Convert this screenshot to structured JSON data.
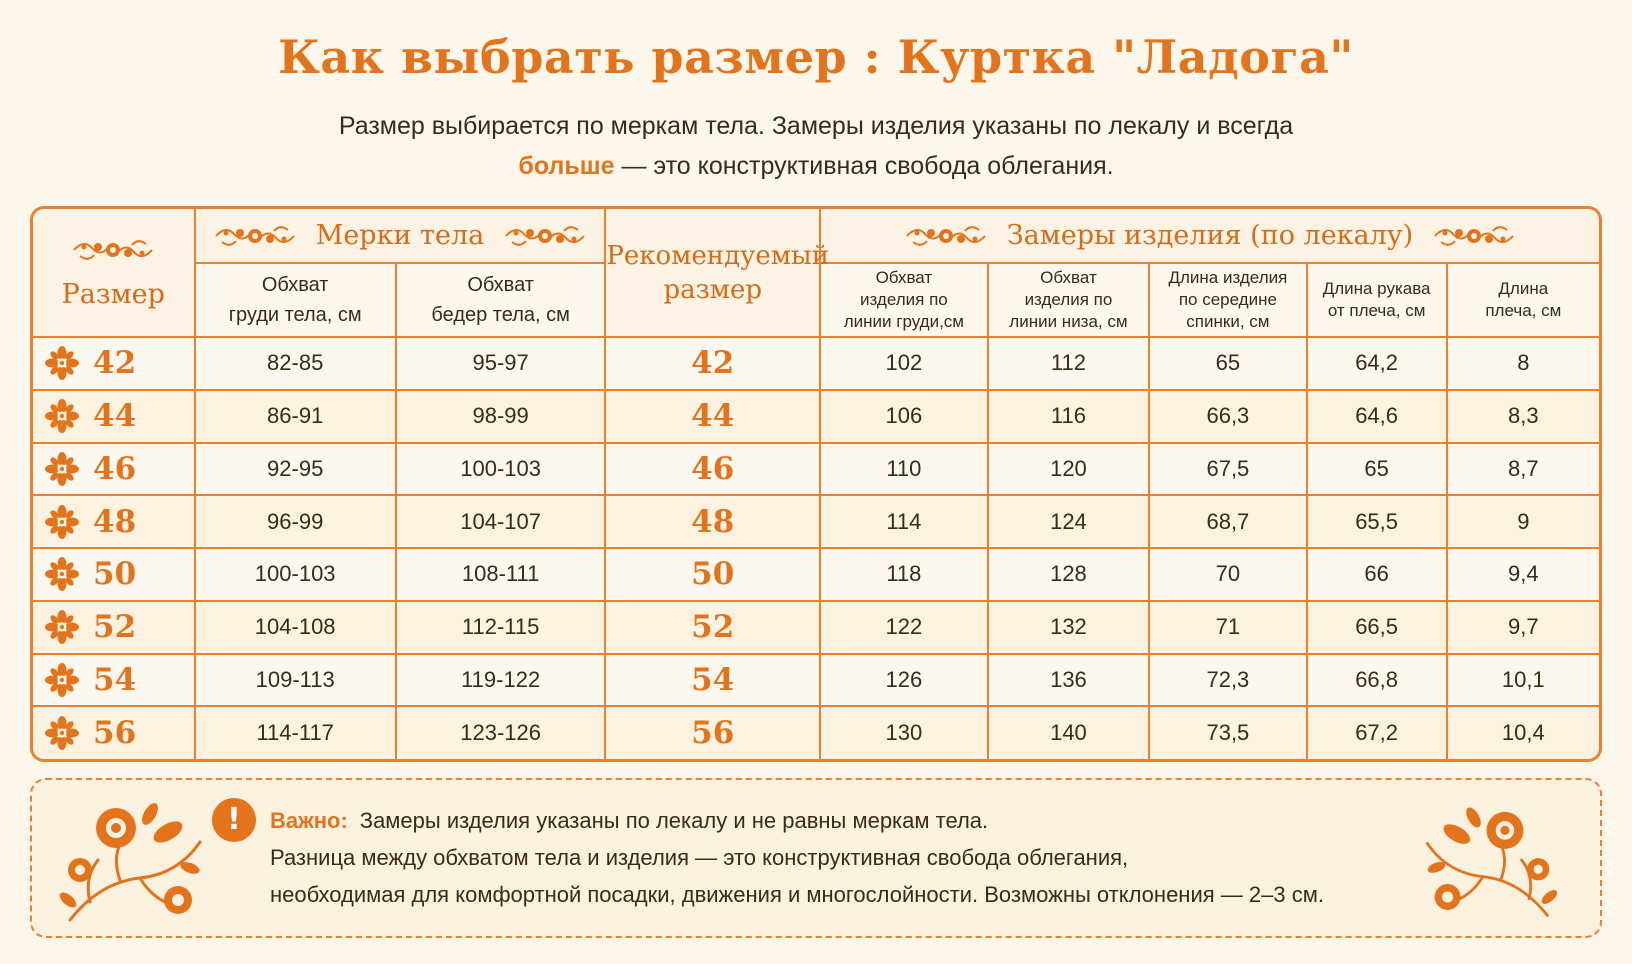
{
  "title": "Как выбрать размер :  Куртка \"Ладога\"",
  "subtitle": {
    "line1": "Размер выбирается по меркам тела. Замеры изделия указаны по лекалу и всегда",
    "line2_bold": "больше",
    "line2_rest": " — это конструктивная свобода облегания."
  },
  "table": {
    "size_header": "Размер",
    "body_group": "Мерки тела",
    "body_cols": [
      "Обхват\nгруди тела, см",
      "Обхват\nбедер тела, см"
    ],
    "rec_header": "Рекомендуемый\nразмер",
    "garment_group": "Замеры изделия (по лекалу)",
    "garment_cols": [
      "Обхват\nизделия по\nлинии груди,см",
      "Обхват\nизделия по\nлинии низа, см",
      "Длина изделия\nпо середине\nспинки, см",
      "Длина рукава\nот плеча, см",
      "Длина\nплеча, см"
    ],
    "rows": [
      {
        "size": "42",
        "chest": "82-85",
        "hips": "95-97",
        "rec": "42",
        "g_chest": "102",
        "g_hem": "112",
        "g_back": "65",
        "g_sleeve": "64,2",
        "g_shoulder": "8"
      },
      {
        "size": "44",
        "chest": "86-91",
        "hips": "98-99",
        "rec": "44",
        "g_chest": "106",
        "g_hem": "116",
        "g_back": "66,3",
        "g_sleeve": "64,6",
        "g_shoulder": "8,3"
      },
      {
        "size": "46",
        "chest": "92-95",
        "hips": "100-103",
        "rec": "46",
        "g_chest": "110",
        "g_hem": "120",
        "g_back": "67,5",
        "g_sleeve": "65",
        "g_shoulder": "8,7"
      },
      {
        "size": "48",
        "chest": "96-99",
        "hips": "104-107",
        "rec": "48",
        "g_chest": "114",
        "g_hem": "124",
        "g_back": "68,7",
        "g_sleeve": "65,5",
        "g_shoulder": "9"
      },
      {
        "size": "50",
        "chest": "100-103",
        "hips": "108-111",
        "rec": "50",
        "g_chest": "118",
        "g_hem": "128",
        "g_back": "70",
        "g_sleeve": "66",
        "g_shoulder": "9,4"
      },
      {
        "size": "52",
        "chest": "104-108",
        "hips": "112-115",
        "rec": "52",
        "g_chest": "122",
        "g_hem": "132",
        "g_back": "71",
        "g_sleeve": "66,5",
        "g_shoulder": "9,7"
      },
      {
        "size": "54",
        "chest": "109-113",
        "hips": "119-122",
        "rec": "54",
        "g_chest": "126",
        "g_hem": "136",
        "g_back": "72,3",
        "g_sleeve": "66,8",
        "g_shoulder": "10,1"
      },
      {
        "size": "56",
        "chest": "114-117",
        "hips": "123-126",
        "rec": "56",
        "g_chest": "130",
        "g_hem": "140",
        "g_back": "73,5",
        "g_sleeve": "67,2",
        "g_shoulder": "10,4"
      }
    ]
  },
  "note": {
    "label": "Важно:",
    "line1": "Замеры изделия указаны по лекалу и не равны меркам тела.",
    "line2": "Разница между обхватом тела и изделия — это конструктивная свобода облегания,",
    "line3": "необходимая для комфортной посадки, движения и многослойности. Возможны отклонения — 2–3 см."
  },
  "colors": {
    "accent": "#e3741c",
    "border": "#e8822e",
    "background": "#fdf6ea",
    "text": "#3a2a1a"
  },
  "icons": [
    "ornament-icon",
    "flower-icon",
    "exclamation-icon",
    "floral-corner-icon"
  ]
}
